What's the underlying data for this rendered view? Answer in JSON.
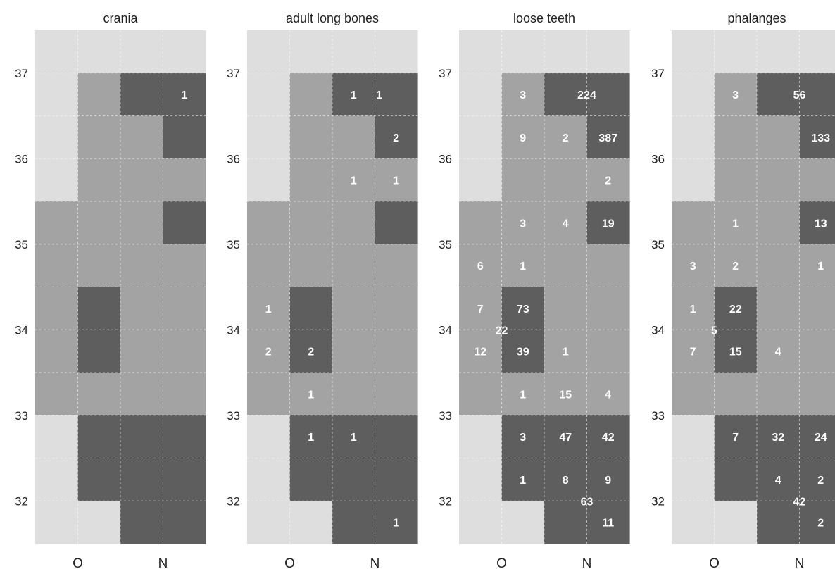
{
  "chart_data": {
    "type": "heatmap",
    "ylim": [
      31.5,
      37.5
    ],
    "y_ticks": [
      "32",
      "33",
      "34",
      "35",
      "36",
      "37"
    ],
    "x_ticks": [
      "O",
      "N"
    ],
    "columns": 4,
    "rows": 12,
    "shade_key": {
      "0": "#dedede",
      "1": "#a3a3a3",
      "2": "#5e5e5e"
    },
    "shade_grid": [
      [
        0,
        0,
        0,
        0
      ],
      [
        0,
        1,
        2,
        2
      ],
      [
        0,
        1,
        1,
        2
      ],
      [
        0,
        1,
        1,
        1
      ],
      [
        1,
        1,
        1,
        2
      ],
      [
        1,
        1,
        1,
        1
      ],
      [
        1,
        2,
        1,
        1
      ],
      [
        1,
        2,
        1,
        1
      ],
      [
        1,
        1,
        1,
        1
      ],
      [
        0,
        2,
        2,
        2
      ],
      [
        0,
        2,
        2,
        2
      ],
      [
        0,
        0,
        2,
        2
      ]
    ],
    "panels": [
      {
        "title": "crania",
        "counts": [
          {
            "c": 3.5,
            "r": 1.5,
            "v": "1"
          }
        ]
      },
      {
        "title": "adult long bones",
        "counts": [
          {
            "c": 2.5,
            "r": 1.5,
            "v": "1"
          },
          {
            "c": 3.1,
            "r": 1.5,
            "v": "1"
          },
          {
            "c": 3.5,
            "r": 2.5,
            "v": "2"
          },
          {
            "c": 2.5,
            "r": 3.5,
            "v": "1"
          },
          {
            "c": 3.5,
            "r": 3.5,
            "v": "1"
          },
          {
            "c": 0.5,
            "r": 6.5,
            "v": "1"
          },
          {
            "c": 0.5,
            "r": 7.5,
            "v": "2"
          },
          {
            "c": 1.5,
            "r": 7.5,
            "v": "2"
          },
          {
            "c": 1.5,
            "r": 8.5,
            "v": "1"
          },
          {
            "c": 1.5,
            "r": 9.5,
            "v": "1"
          },
          {
            "c": 2.5,
            "r": 9.5,
            "v": "1"
          },
          {
            "c": 3.5,
            "r": 11.5,
            "v": "1"
          }
        ]
      },
      {
        "title": "loose teeth",
        "counts": [
          {
            "c": 1.5,
            "r": 1.5,
            "v": "3"
          },
          {
            "c": 3.0,
            "r": 1.5,
            "v": "224"
          },
          {
            "c": 1.5,
            "r": 2.5,
            "v": "9"
          },
          {
            "c": 2.5,
            "r": 2.5,
            "v": "2"
          },
          {
            "c": 3.5,
            "r": 2.5,
            "v": "387"
          },
          {
            "c": 3.5,
            "r": 3.5,
            "v": "2"
          },
          {
            "c": 1.5,
            "r": 4.5,
            "v": "3"
          },
          {
            "c": 2.5,
            "r": 4.5,
            "v": "4"
          },
          {
            "c": 3.5,
            "r": 4.5,
            "v": "19"
          },
          {
            "c": 0.5,
            "r": 5.5,
            "v": "6"
          },
          {
            "c": 1.5,
            "r": 5.5,
            "v": "1"
          },
          {
            "c": 0.5,
            "r": 6.5,
            "v": "7"
          },
          {
            "c": 1.5,
            "r": 6.5,
            "v": "73"
          },
          {
            "c": 1.0,
            "r": 7.0,
            "v": "22"
          },
          {
            "c": 0.5,
            "r": 7.5,
            "v": "12"
          },
          {
            "c": 1.5,
            "r": 7.5,
            "v": "39"
          },
          {
            "c": 2.5,
            "r": 7.5,
            "v": "1"
          },
          {
            "c": 1.5,
            "r": 8.5,
            "v": "1"
          },
          {
            "c": 2.5,
            "r": 8.5,
            "v": "15"
          },
          {
            "c": 3.5,
            "r": 8.5,
            "v": "4"
          },
          {
            "c": 1.5,
            "r": 9.5,
            "v": "3"
          },
          {
            "c": 2.5,
            "r": 9.5,
            "v": "47"
          },
          {
            "c": 3.5,
            "r": 9.5,
            "v": "42"
          },
          {
            "c": 1.5,
            "r": 10.5,
            "v": "1"
          },
          {
            "c": 2.5,
            "r": 10.5,
            "v": "8"
          },
          {
            "c": 3.5,
            "r": 10.5,
            "v": "9"
          },
          {
            "c": 3.0,
            "r": 11.0,
            "v": "63"
          },
          {
            "c": 3.5,
            "r": 11.5,
            "v": "11"
          }
        ]
      },
      {
        "title": "phalanges",
        "counts": [
          {
            "c": 1.5,
            "r": 1.5,
            "v": "3"
          },
          {
            "c": 3.0,
            "r": 1.5,
            "v": "56"
          },
          {
            "c": 3.5,
            "r": 2.5,
            "v": "133"
          },
          {
            "c": 1.5,
            "r": 4.5,
            "v": "1"
          },
          {
            "c": 3.5,
            "r": 4.5,
            "v": "13"
          },
          {
            "c": 0.5,
            "r": 5.5,
            "v": "3"
          },
          {
            "c": 1.5,
            "r": 5.5,
            "v": "2"
          },
          {
            "c": 3.5,
            "r": 5.5,
            "v": "1"
          },
          {
            "c": 0.5,
            "r": 6.5,
            "v": "1"
          },
          {
            "c": 1.5,
            "r": 6.5,
            "v": "22"
          },
          {
            "c": 1.0,
            "r": 7.0,
            "v": "5"
          },
          {
            "c": 0.5,
            "r": 7.5,
            "v": "7"
          },
          {
            "c": 1.5,
            "r": 7.5,
            "v": "15"
          },
          {
            "c": 2.5,
            "r": 7.5,
            "v": "4"
          },
          {
            "c": 1.5,
            "r": 9.5,
            "v": "7"
          },
          {
            "c": 2.5,
            "r": 9.5,
            "v": "32"
          },
          {
            "c": 3.5,
            "r": 9.5,
            "v": "24"
          },
          {
            "c": 2.5,
            "r": 10.5,
            "v": "4"
          },
          {
            "c": 3.5,
            "r": 10.5,
            "v": "2"
          },
          {
            "c": 3.0,
            "r": 11.0,
            "v": "42"
          },
          {
            "c": 3.5,
            "r": 11.5,
            "v": "2"
          }
        ]
      }
    ]
  }
}
